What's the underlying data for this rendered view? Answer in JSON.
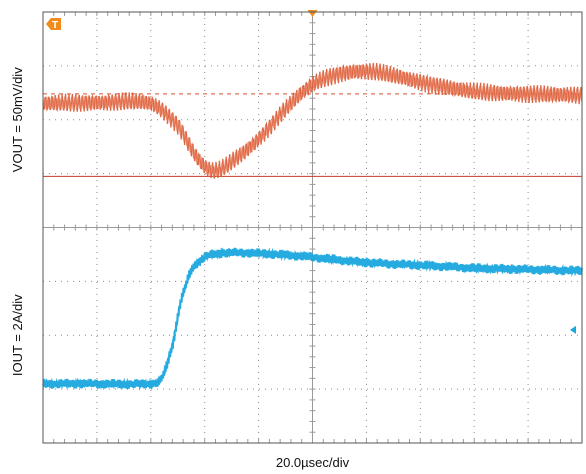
{
  "chart_data": {
    "type": "line",
    "title": "",
    "xlabel": "20.0µsec/div",
    "xlim": [
      0,
      10
    ],
    "panels": [
      {
        "ylabel": "VOUT = 50mV/div",
        "ylim": [
          0,
          4
        ],
        "reference_level": 2.48,
        "marker_level": 0.95,
        "series": [
          {
            "x": [
              0,
              1,
              2,
              2.5,
              2.9,
              3.2,
              3.6,
              4.0,
              4.5,
              5.0,
              5.5,
              6.0,
              6.5,
              7.0,
              7.5,
              8.0,
              9.0,
              10.0
            ],
            "values": [
              2.3,
              2.32,
              2.3,
              1.9,
              1.25,
              1.05,
              1.3,
              1.65,
              2.2,
              2.65,
              2.85,
              2.9,
              2.82,
              2.7,
              2.6,
              2.52,
              2.48,
              2.45
            ]
          }
        ],
        "color": "#d9542f"
      },
      {
        "ylabel": "IOUT = 2A/div",
        "ylim": [
          0,
          4
        ],
        "marker_level": 2.1,
        "series": [
          {
            "x": [
              0,
              1,
              2,
              2.2,
              2.4,
              2.55,
              2.75,
              3.0,
              3.3,
              3.6,
              4.0,
              5.0,
              6.0,
              7.0,
              8.0,
              9.0,
              10.0
            ],
            "values": [
              1.1,
              1.1,
              1.1,
              1.2,
              1.8,
              2.6,
              3.2,
              3.45,
              3.52,
              3.53,
              3.52,
              3.45,
              3.35,
              3.3,
              3.25,
              3.22,
              3.2
            ]
          }
        ],
        "color": "#1aa6de"
      }
    ],
    "grid": true,
    "markers": {
      "trigger_label": "T",
      "trigger_color": "#f08b1e",
      "ch2_marker_color": "#1aa6de"
    }
  }
}
